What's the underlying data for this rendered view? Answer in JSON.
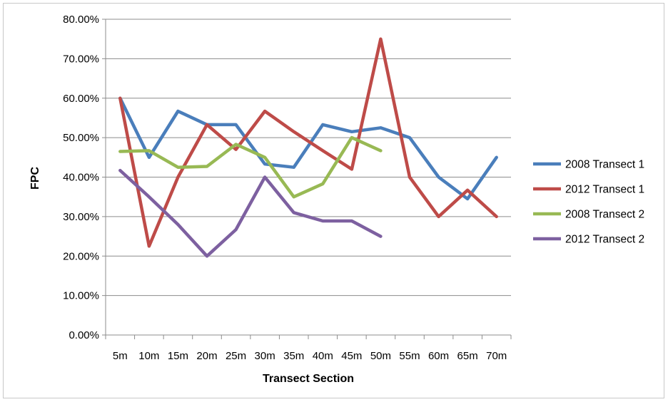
{
  "chart_data": {
    "type": "line",
    "title": "",
    "xlabel": "Transect Section",
    "ylabel": "FPC",
    "ylim": [
      0,
      80
    ],
    "y_ticks": [
      "0.00%",
      "10.00%",
      "20.00%",
      "30.00%",
      "40.00%",
      "50.00%",
      "60.00%",
      "70.00%",
      "80.00%"
    ],
    "grid": "horizontal",
    "legend_position": "right",
    "categories": [
      "5m",
      "10m",
      "15m",
      "20m",
      "25m",
      "30m",
      "35m",
      "40m",
      "45m",
      "50m",
      "55m",
      "60m",
      "65m",
      "70m"
    ],
    "series": [
      {
        "name": "2008 Transect 1",
        "color": "#4a7ebb",
        "values": [
          60,
          45,
          56.7,
          53.3,
          53.3,
          43.3,
          42.5,
          53.3,
          51.5,
          52.5,
          50,
          40,
          34.5,
          45
        ]
      },
      {
        "name": "2012 Transect 1",
        "color": "#be4b48",
        "values": [
          60,
          22.5,
          40,
          53.3,
          47,
          56.7,
          51.5,
          46.7,
          42,
          75,
          40,
          30,
          36.7,
          30
        ]
      },
      {
        "name": "2008 Transect 2",
        "color": "#98b954",
        "values": [
          46.5,
          46.7,
          42.5,
          42.7,
          48.3,
          45,
          35,
          38.3,
          50,
          46.7,
          null,
          null,
          null,
          null
        ]
      },
      {
        "name": "2012 Transect 2",
        "color": "#7d60a0",
        "values": [
          41.7,
          35,
          28,
          20,
          26.7,
          40,
          31,
          28.9,
          28.9,
          25,
          null,
          null,
          null,
          null
        ]
      }
    ]
  }
}
